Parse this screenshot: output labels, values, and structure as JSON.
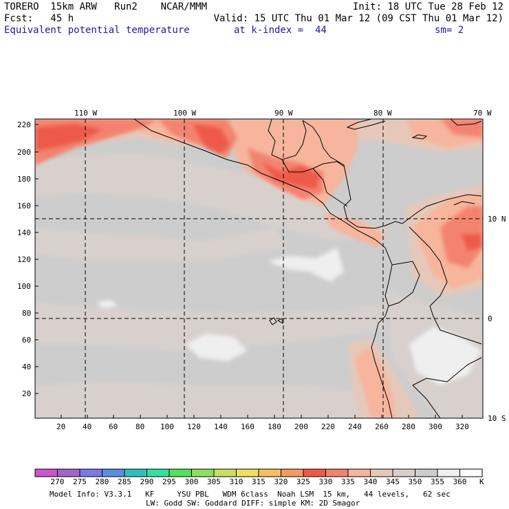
{
  "header": {
    "line1_left": "TORERO  15km ARW   Run2    NCAR/MMM",
    "line1_right": "Init: 18 UTC Tue 28 Feb 12",
    "line2_left": "Fcst:   45 h",
    "line2_right": "Valid: 15 UTC Thu 01 Mar 12 (09 CST Thu 01 Mar 12)",
    "line3_field": "Equivalent potential temperature",
    "line3_level": "at k-index =  44",
    "line3_sm": "sm= 2"
  },
  "map": {
    "top_lon_labels": [
      "110 W",
      "100 W",
      "90 W",
      "80 W",
      "70 W"
    ],
    "right_lat_labels": [
      "10 N",
      "0",
      "10 S"
    ],
    "left_y_ticks": [
      "220",
      "200",
      "180",
      "160",
      "140",
      "120",
      "100",
      "80",
      "60",
      "40",
      "20"
    ],
    "bottom_x_ticks": [
      "20",
      "40",
      "60",
      "80",
      "100",
      "120",
      "140",
      "160",
      "180",
      "200",
      "220",
      "240",
      "260",
      "280",
      "300",
      "320"
    ],
    "colors": {
      "c330": "#ee5a4a",
      "c335": "#f3836f",
      "c340": "#f6b59c",
      "c345": "#e6c8b9",
      "c350": "#d8d0cc",
      "c355": "#cdcdcd",
      "c360": "#efefef"
    }
  },
  "colorbar": {
    "labels": [
      "270",
      "275",
      "280",
      "285",
      "290",
      "295",
      "300",
      "305",
      "310",
      "315",
      "320",
      "325",
      "330",
      "335",
      "340",
      "345",
      "350",
      "355",
      "360"
    ],
    "unit": "K",
    "colors": [
      "#cc55cc",
      "#a066cc",
      "#7a7ae6",
      "#5a8fe0",
      "#2fbfbf",
      "#33e0a0",
      "#55e060",
      "#90e060",
      "#c8e060",
      "#f0e060",
      "#f5c060",
      "#f59a60",
      "#ee5a4a",
      "#f3836f",
      "#f6b59c",
      "#e6c8b9",
      "#d8d0cc",
      "#cdcdcd",
      "#efefef"
    ]
  },
  "footer": {
    "line1": "Model Info: V3.3.1   KF     YSU PBL   WDM 6class  Noah LSM  15 km,   44 levels,   62 sec",
    "line2": "LW: Godd SW: Goddard DIFF: simple KM: 2D Smagor"
  }
}
